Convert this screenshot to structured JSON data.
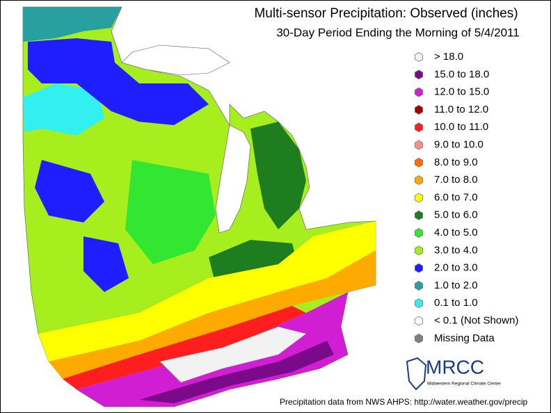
{
  "header": {
    "title": "Multi-sensor Precipitation: Observed (inches)",
    "subtitle": "30-Day Period Ending the Morning of 5/4/2011"
  },
  "legend": {
    "items": [
      {
        "label": "> 18.0",
        "color": "#f2f2f2"
      },
      {
        "label": "15.0 to 18.0",
        "color": "#7a0a8a"
      },
      {
        "label": "12.0 to 15.0",
        "color": "#d21ed2"
      },
      {
        "label": "11.0 to 12.0",
        "color": "#a80000"
      },
      {
        "label": "10.0 to 11.0",
        "color": "#ff1e1e"
      },
      {
        "label": "9.0 to 10.0",
        "color": "#ff8c8c"
      },
      {
        "label": "8.0 to 9.0",
        "color": "#ff6e00"
      },
      {
        "label": "7.0 to 8.0",
        "color": "#ffaa00"
      },
      {
        "label": "6.0 to 7.0",
        "color": "#ffff00"
      },
      {
        "label": "5.0 to 6.0",
        "color": "#1e7d1e"
      },
      {
        "label": "4.0 to 5.0",
        "color": "#32e632"
      },
      {
        "label": "3.0 to 4.0",
        "color": "#a6ee1e"
      },
      {
        "label": "2.0 to 3.0",
        "color": "#1e1eff"
      },
      {
        "label": "1.0 to 2.0",
        "color": "#28a0a0"
      },
      {
        "label": "0.1 to 1.0",
        "color": "#32f0f0"
      },
      {
        "label": "< 0.1 (Not Shown)",
        "color": "#ffffff"
      },
      {
        "label": "Missing Data",
        "color": "#7f7f7f"
      }
    ]
  },
  "logo": {
    "name": "MRCC",
    "subtitle": "Midwestern Regional Climate Center"
  },
  "footer": {
    "source": "Precipitation data from NWS AHPS:  http://water.weather.gov/precip"
  }
}
